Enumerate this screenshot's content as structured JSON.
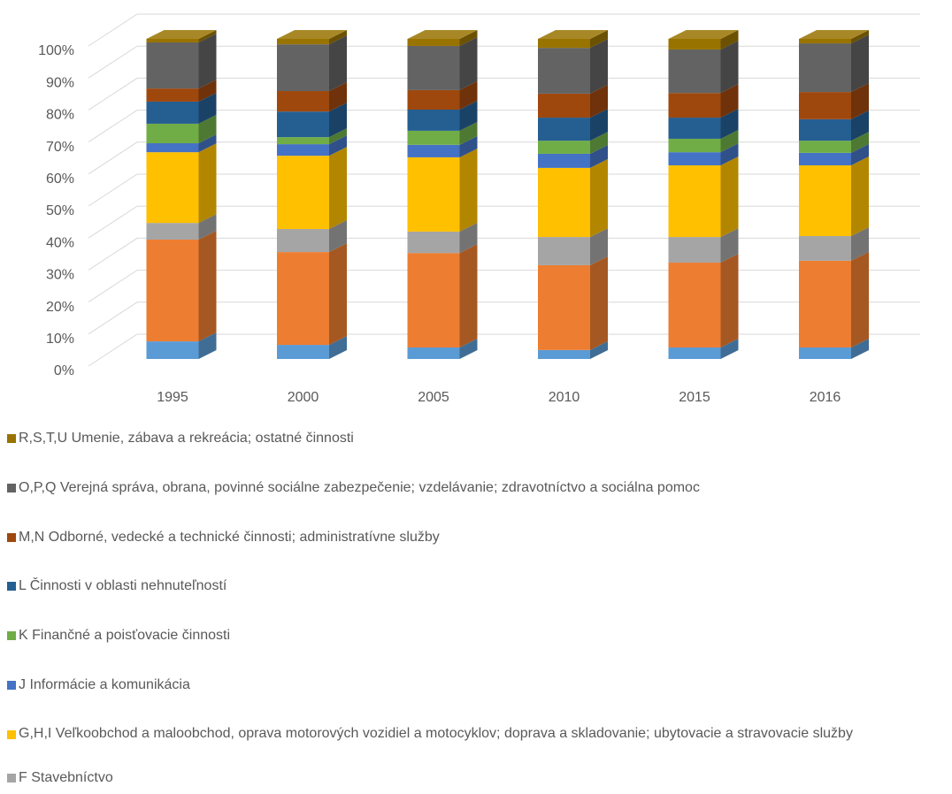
{
  "chart_data": {
    "type": "bar3d_stacked",
    "categories": [
      "1995",
      "2000",
      "2005",
      "2010",
      "2015",
      "2016"
    ],
    "ylim": [
      0,
      100
    ],
    "yticks": [
      {
        "value": 0,
        "label": "0%"
      },
      {
        "value": 10,
        "label": "10%"
      },
      {
        "value": 20,
        "label": "20%"
      },
      {
        "value": 30,
        "label": "30%"
      },
      {
        "value": 40,
        "label": "40%"
      },
      {
        "value": 50,
        "label": "50%"
      },
      {
        "value": 60,
        "label": "60%"
      },
      {
        "value": 70,
        "label": "70%"
      },
      {
        "value": 80,
        "label": "80%"
      },
      {
        "value": 90,
        "label": "90%"
      },
      {
        "value": 100,
        "label": "100%"
      }
    ],
    "grid": true,
    "series": [
      {
        "color": "#5b9bd5",
        "values": [
          5.5,
          4.4,
          3.6,
          2.8,
          3.6,
          3.6
        ]
      },
      {
        "color": "#ed7d31",
        "values": [
          31.8,
          29.0,
          29.5,
          26.5,
          26.5,
          27.1
        ]
      },
      {
        "name": "F Stavebníctvo",
        "color": "#a5a5a5",
        "values": [
          5.2,
          7.2,
          6.7,
          8.8,
          8.0,
          7.7
        ]
      },
      {
        "name": "G,H,I Veľkoobchod a maloobchod, oprava motorových vozidiel a motocyklov; doprava a skladovanie; ubytovacie a stravovacie služby",
        "color": "#ffc000",
        "values": [
          22.1,
          22.9,
          23.2,
          21.6,
          22.4,
          22.1
        ]
      },
      {
        "name": "J Informácie a komunikácia",
        "color": "#4472c4",
        "values": [
          2.8,
          3.6,
          3.9,
          4.4,
          4.1,
          3.9
        ]
      },
      {
        "name": "K Finančné a poisťovacie činnosti",
        "color": "#70ad47",
        "values": [
          6.1,
          2.2,
          4.4,
          4.1,
          4.2,
          3.8
        ]
      },
      {
        "name": "L Činnosti v oblasti nehnuteľností",
        "color": "#255e91",
        "values": [
          6.9,
          8.0,
          6.6,
          7.2,
          6.6,
          6.7
        ]
      },
      {
        "name": "M,N Odborné, vedecké a technické činnosti; administratívne služby",
        "color": "#9e480e",
        "values": [
          4.1,
          6.4,
          6.1,
          7.5,
          7.7,
          8.5
        ]
      },
      {
        "name": "O,P,Q Verejná správa, obrana, povinné sociálne zabezpečenie; vzdelávanie; zdravotníctvo a sociálna pomoc",
        "color": "#636363",
        "values": [
          14.4,
          14.6,
          13.8,
          14.3,
          13.6,
          15.2
        ]
      },
      {
        "name": "R,S,T,U Umenie, zábava a rekreácia; ostatné činnosti",
        "color": "#997300",
        "values": [
          1.1,
          1.7,
          2.2,
          2.8,
          3.3,
          1.4
        ]
      }
    ]
  }
}
